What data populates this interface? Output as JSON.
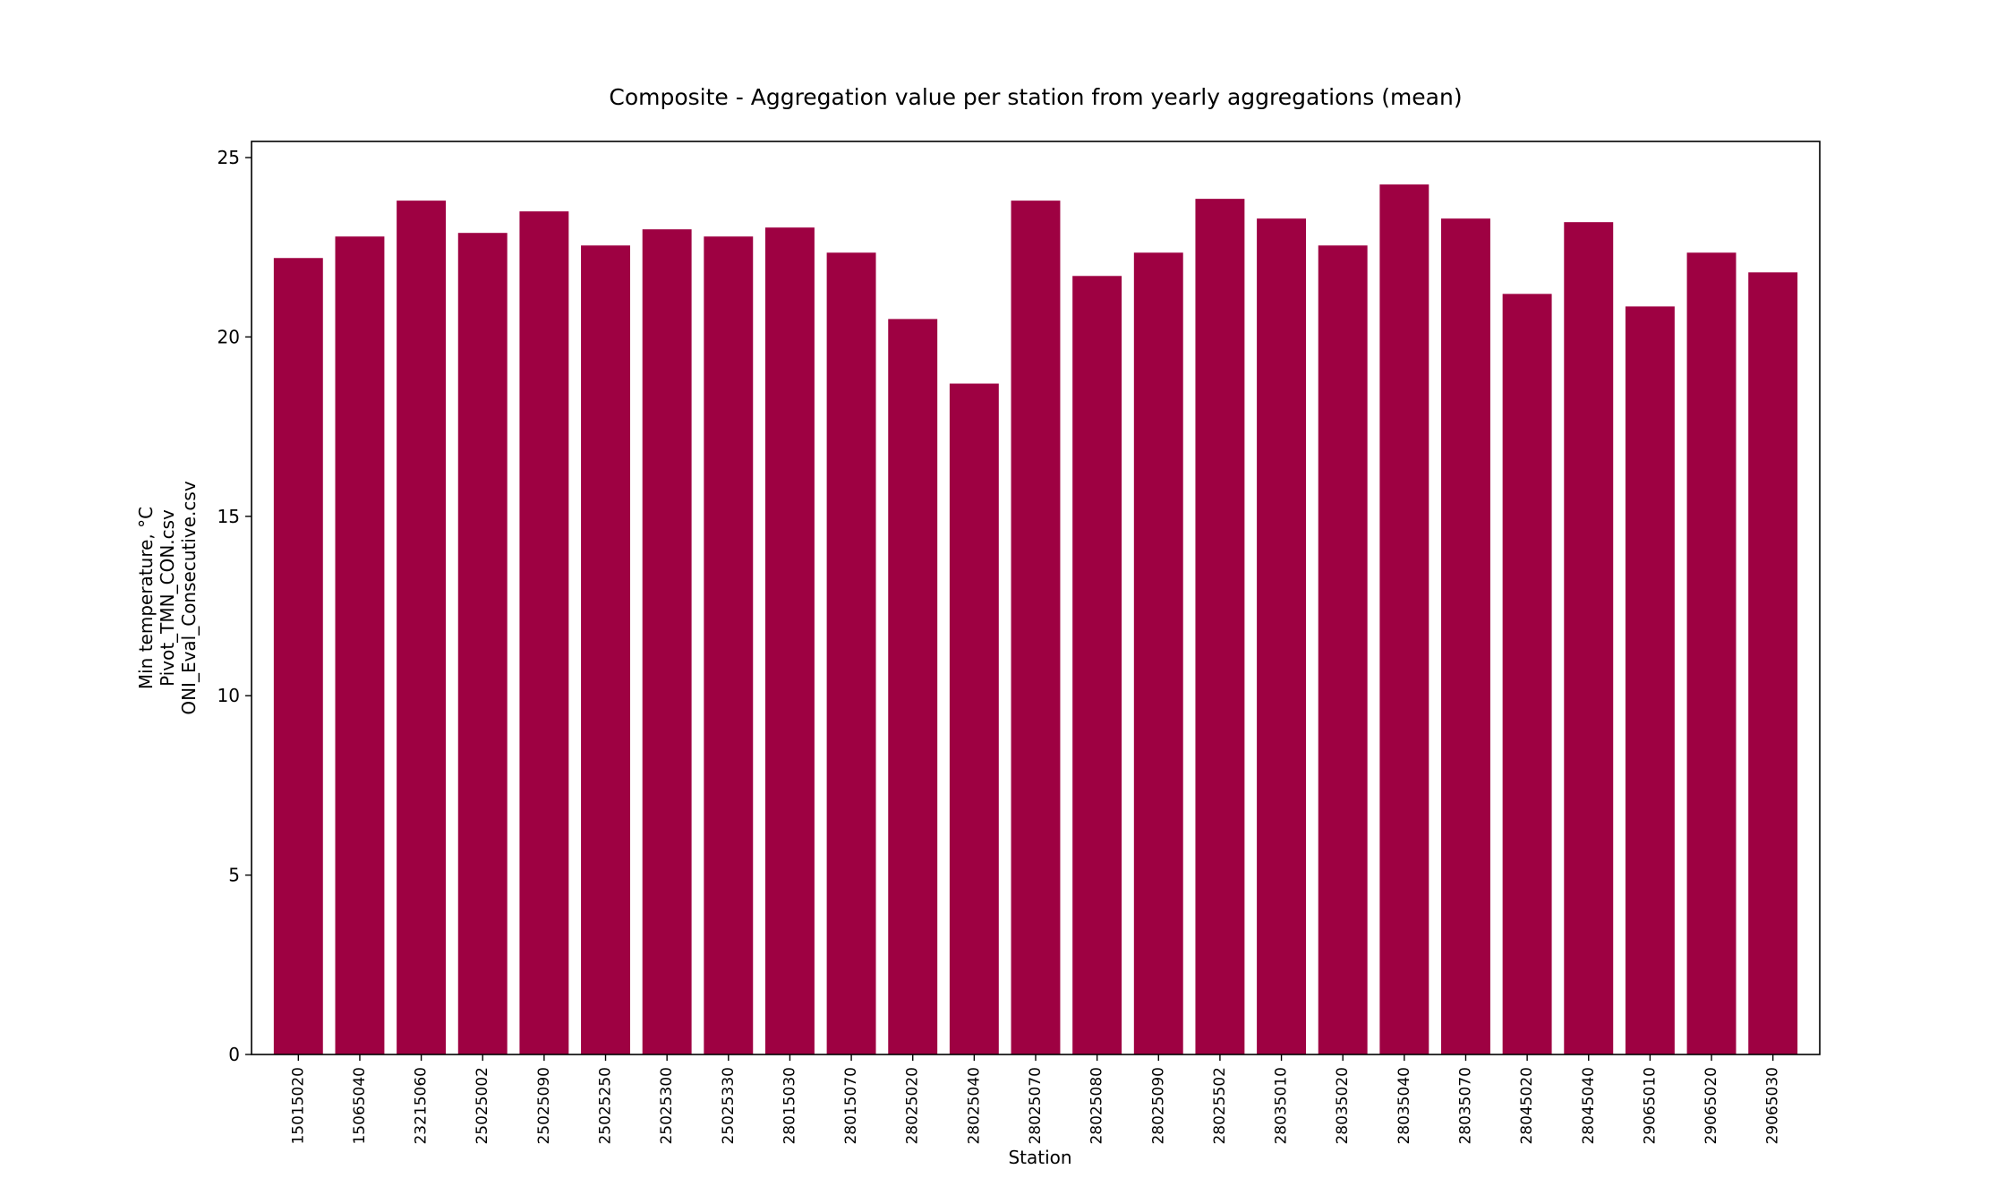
{
  "chart_data": {
    "type": "bar",
    "title": "Composite - Aggregation value per station from yearly aggregations (mean)",
    "xlabel": "Station",
    "ylabel_lines": [
      "Min temperature, °C",
      "Pivot_TMN_CON.csv",
      "ONI_Eval_Consecutive.csv"
    ],
    "ylim": [
      0,
      25.45
    ],
    "yticks": [
      0,
      5,
      10,
      15,
      20,
      25
    ],
    "grid": false,
    "legend": "none",
    "bar_color": "#9e0142",
    "categories": [
      "15015020",
      "15065040",
      "23215060",
      "25025002",
      "25025090",
      "25025250",
      "25025300",
      "25025330",
      "28015030",
      "28015070",
      "28025020",
      "28025040",
      "28025070",
      "28025080",
      "28025090",
      "28025502",
      "28035010",
      "28035020",
      "28035040",
      "28035070",
      "28045020",
      "28045040",
      "29065010",
      "29065020",
      "29065030"
    ],
    "values": [
      22.2,
      22.8,
      23.8,
      22.9,
      23.5,
      22.55,
      23.0,
      22.8,
      23.05,
      22.35,
      20.5,
      18.7,
      23.8,
      21.7,
      22.35,
      23.85,
      23.3,
      22.55,
      24.25,
      23.3,
      21.2,
      23.2,
      20.85,
      22.35,
      21.8
    ]
  }
}
